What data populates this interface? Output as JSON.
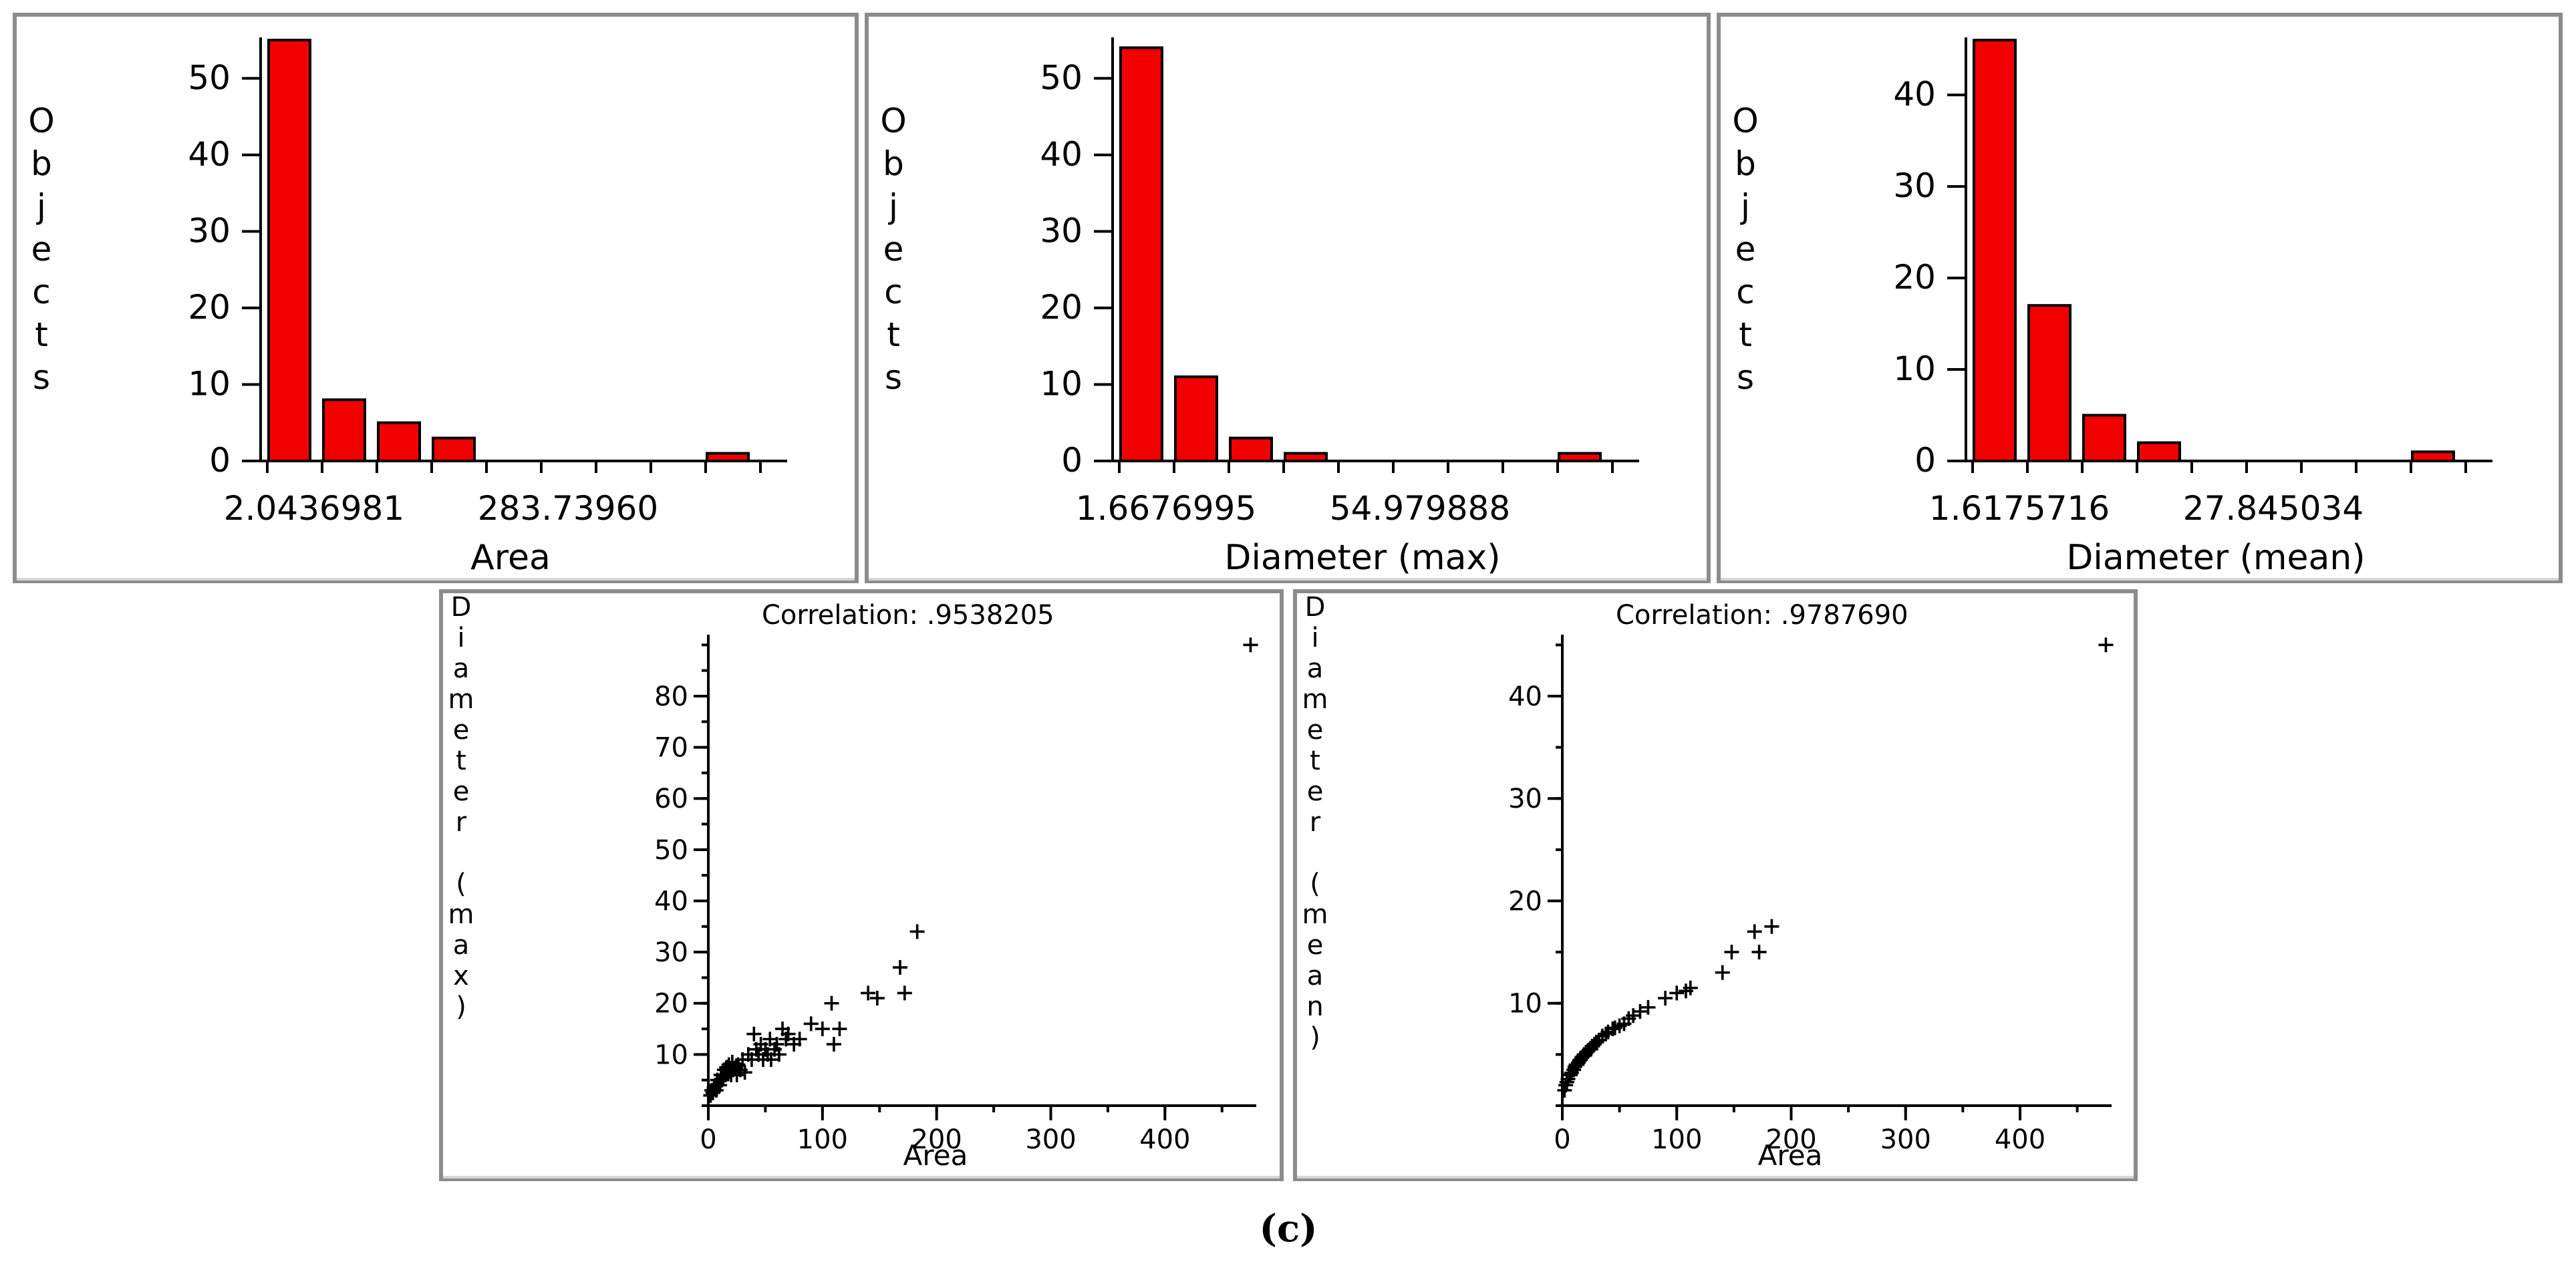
{
  "figure_label": "(c)",
  "chart_data": [
    {
      "type": "bar",
      "title": "",
      "xlabel": "Area",
      "ylabel": "Objects",
      "ylim": [
        0,
        55
      ],
      "yticks": [
        0,
        10,
        20,
        30,
        40,
        50
      ],
      "x_tick_labels": [
        "2.0436981",
        "283.73960"
      ],
      "values": [
        55,
        8,
        5,
        3,
        0,
        0,
        0,
        0,
        1
      ],
      "grid": false,
      "legend": "none"
    },
    {
      "type": "bar",
      "title": "",
      "xlabel": "Diameter (max)",
      "ylabel": "Objects",
      "ylim": [
        0,
        55
      ],
      "yticks": [
        0,
        10,
        20,
        30,
        40,
        50
      ],
      "x_tick_labels": [
        "1.6676995",
        "54.979888"
      ],
      "values": [
        54,
        11,
        3,
        1,
        0,
        0,
        0,
        0,
        1
      ],
      "grid": false,
      "legend": "none"
    },
    {
      "type": "bar",
      "title": "",
      "xlabel": "Diameter (mean)",
      "ylabel": "Objects",
      "ylim": [
        0,
        46
      ],
      "yticks": [
        0,
        10,
        20,
        30,
        40
      ],
      "x_tick_labels": [
        "1.6175716",
        "27.845034"
      ],
      "values": [
        46,
        17,
        5,
        2,
        0,
        0,
        0,
        0,
        1
      ],
      "grid": false,
      "legend": "none"
    },
    {
      "type": "scatter",
      "title": "Correlation: .9538205",
      "xlabel": "Area",
      "ylabel": "Diameter (max)",
      "xlim": [
        0,
        480
      ],
      "ylim": [
        0,
        92
      ],
      "xticks": [
        0,
        100,
        200,
        300,
        400
      ],
      "yticks": [
        10,
        20,
        30,
        40,
        50,
        60,
        70,
        80
      ],
      "marker": "+",
      "x": [
        2,
        3,
        4,
        5,
        6,
        7,
        8,
        10,
        11,
        12,
        13,
        14,
        15,
        16,
        17,
        18,
        19,
        20,
        21,
        22,
        24,
        25,
        26,
        28,
        30,
        32,
        35,
        38,
        40,
        42,
        44,
        46,
        48,
        50,
        52,
        54,
        55,
        58,
        60,
        62,
        65,
        68,
        70,
        75,
        80,
        90,
        100,
        108,
        110,
        115,
        140,
        148,
        168,
        172,
        183,
        475
      ],
      "y": [
        2,
        3,
        2.5,
        3.5,
        4,
        3,
        5,
        4,
        6,
        5,
        5.5,
        7,
        6,
        7.5,
        6.5,
        8,
        7,
        6,
        8.5,
        7,
        7.5,
        6,
        8,
        7,
        9,
        6.5,
        10,
        9,
        14,
        11,
        10,
        12,
        9,
        11,
        10,
        13,
        9,
        11,
        12,
        10,
        15,
        13,
        14,
        12,
        13,
        16,
        15,
        20,
        12,
        15,
        22,
        21,
        27,
        22,
        34,
        90
      ],
      "grid": false,
      "legend": "none"
    },
    {
      "type": "scatter",
      "title": "Correlation: .9787690",
      "xlabel": "Area",
      "ylabel": "Diameter (mean)",
      "xlim": [
        0,
        480
      ],
      "ylim": [
        0,
        46
      ],
      "xticks": [
        0,
        100,
        200,
        300,
        400
      ],
      "yticks": [
        10,
        20,
        30,
        40
      ],
      "marker": "+",
      "x": [
        2,
        3,
        4,
        5,
        6,
        7,
        8,
        10,
        11,
        12,
        13,
        14,
        15,
        16,
        17,
        18,
        19,
        20,
        21,
        22,
        24,
        25,
        26,
        28,
        30,
        32,
        35,
        38,
        40,
        44,
        46,
        50,
        54,
        58,
        62,
        68,
        75,
        90,
        100,
        108,
        112,
        140,
        148,
        168,
        172,
        183,
        475
      ],
      "y": [
        1.5,
        2,
        2.3,
        2.6,
        3,
        3,
        3.2,
        3.5,
        3.8,
        4,
        4,
        4.2,
        4.4,
        4.5,
        4.7,
        4.8,
        5,
        5,
        5.2,
        5.3,
        5.5,
        5.5,
        5.8,
        6,
        6.2,
        6.4,
        6.8,
        7,
        7.2,
        7.5,
        7.6,
        7.8,
        8,
        8.5,
        8.8,
        9.2,
        9.6,
        10.5,
        11,
        11.2,
        11.5,
        13,
        15,
        17,
        15,
        17.5,
        45
      ],
      "grid": false,
      "legend": "none"
    }
  ]
}
